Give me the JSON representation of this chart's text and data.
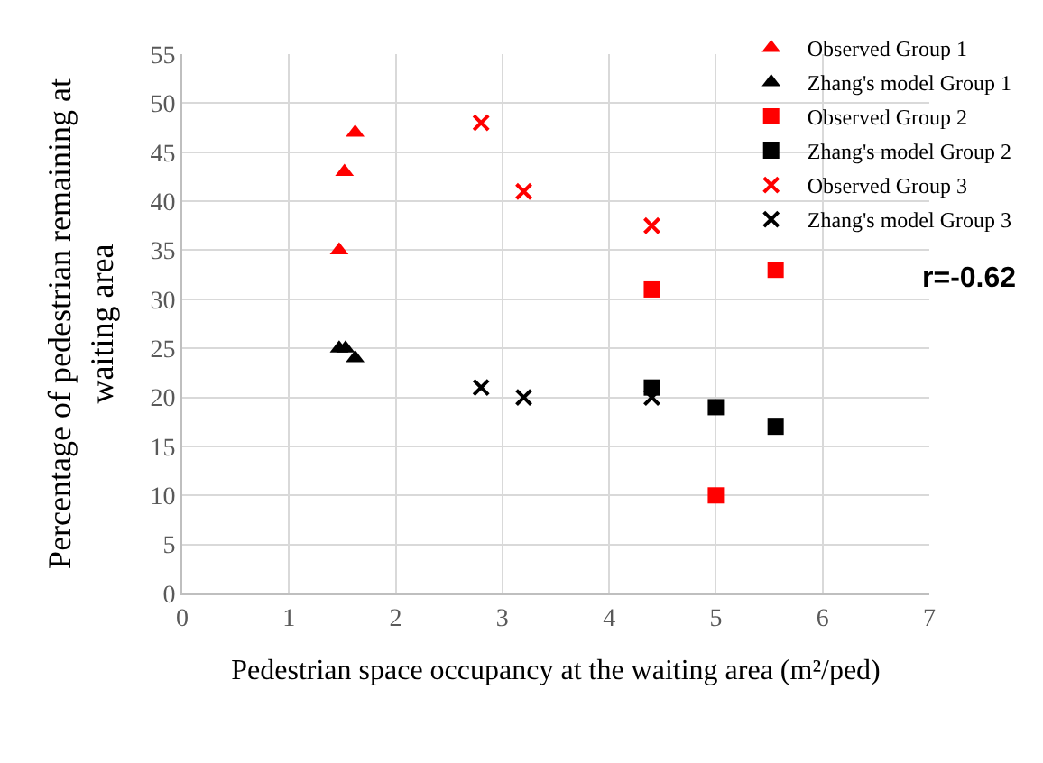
{
  "chart_data": {
    "type": "scatter",
    "xlabel": "Pedestrian space occupancy at the waiting area (m²/ped)",
    "ylabel": "Percentage of pedestrian remaining at waiting area",
    "xlim": [
      0,
      7
    ],
    "xticks": [
      0,
      1,
      2,
      3,
      4,
      5,
      6,
      7
    ],
    "ylim": [
      0,
      55
    ],
    "yticks": [
      0,
      5,
      10,
      15,
      20,
      25,
      30,
      35,
      40,
      45,
      50,
      55
    ],
    "grid": true,
    "legend": "top right",
    "annotations": [
      "r=-0.62"
    ],
    "series": [
      {
        "name": "Observed Group 1",
        "color": "#ff0000",
        "marker": "triangle",
        "x": [
          1.62,
          1.52,
          1.47
        ],
        "values": [
          47,
          43,
          35
        ]
      },
      {
        "name": "Zhang's model Group 1",
        "color": "#000000",
        "marker": "triangle",
        "x": [
          1.47,
          1.53,
          1.62
        ],
        "values": [
          25,
          25,
          24
        ]
      },
      {
        "name": "Observed Group 2",
        "color": "#ff0000",
        "marker": "square",
        "x": [
          4.4,
          5.0,
          5.56
        ],
        "values": [
          31,
          10,
          33
        ]
      },
      {
        "name": "Zhang's model Group 2",
        "color": "#000000",
        "marker": "square",
        "x": [
          4.4,
          5.0,
          5.56
        ],
        "values": [
          21,
          19,
          17
        ]
      },
      {
        "name": "Observed Group 3",
        "color": "#ff0000",
        "marker": "cross",
        "x": [
          2.8,
          3.2,
          4.4
        ],
        "values": [
          48,
          41,
          37.5
        ]
      },
      {
        "name": "Zhang's model Group 3",
        "color": "#000000",
        "marker": "cross",
        "x": [
          2.8,
          3.2,
          4.4
        ],
        "values": [
          21,
          20,
          20
        ]
      }
    ]
  }
}
